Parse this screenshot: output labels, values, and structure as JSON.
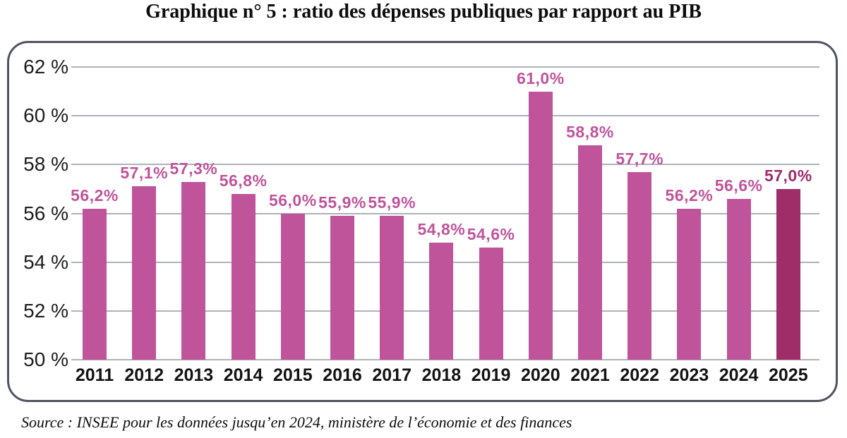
{
  "title": "Graphique n° 5 : ratio des dépenses publiques par rapport au PIB",
  "source": "Source : INSEE pour les données jusqu’en 2024, ministère de l’économie et des finances",
  "colors": {
    "bar": "#c0549b",
    "bar_highlight": "#9e2d68",
    "label": "#c0549b",
    "label_highlight": "#9e2d68",
    "gridline": "#aeb2bc",
    "frame_border": "#4f5463",
    "axis_text": "#1c1c1c"
  },
  "chart_data": {
    "type": "bar",
    "title": "Graphique n° 5 : ratio des dépenses publiques par rapport au PIB",
    "categories": [
      "2011",
      "2012",
      "2013",
      "2014",
      "2015",
      "2016",
      "2017",
      "2018",
      "2019",
      "2020",
      "2021",
      "2022",
      "2023",
      "2024",
      "2025"
    ],
    "values": [
      56.2,
      57.1,
      57.3,
      56.8,
      56.0,
      55.9,
      55.9,
      54.8,
      54.6,
      61.0,
      58.8,
      57.7,
      56.2,
      56.6,
      57.0
    ],
    "value_labels": [
      "56,2%",
      "57,1%",
      "57,3%",
      "56,8%",
      "56,0%",
      "55,9%",
      "55,9%",
      "54,8%",
      "54,6%",
      "61,0%",
      "58,8%",
      "57,7%",
      "56,2%",
      "56,6%",
      "57,0%"
    ],
    "highlight_index": 14,
    "xlabel": "",
    "ylabel": "",
    "ylim": [
      50,
      62
    ],
    "ytick_step": 2,
    "ytick_labels": [
      "62 %",
      "60 %",
      "58 %",
      "56 %",
      "54 %",
      "52 %",
      "50 %"
    ],
    "grid": true,
    "legend_position": "none"
  }
}
